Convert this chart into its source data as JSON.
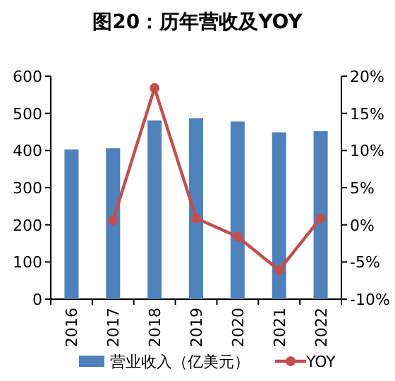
{
  "chart_data": {
    "type": "bar",
    "title": "图20：历年营收及YOY",
    "categories": [
      "2016",
      "2017",
      "2018",
      "2019",
      "2020",
      "2021",
      "2022"
    ],
    "series": [
      {
        "name": "营业收入（亿美元）",
        "color": "#4f81bd",
        "values": [
          403,
          406,
          481,
          487,
          478,
          449,
          452
        ]
      },
      {
        "name": "YOY",
        "type": "line",
        "axis": "y2",
        "color": "#c0504d",
        "marker": "circle",
        "values": [
          null,
          0.6,
          18.4,
          0.9,
          -1.6,
          -6.1,
          0.9
        ]
      }
    ],
    "ylim": [
      0,
      600
    ],
    "yticks": [
      0,
      100,
      200,
      300,
      400,
      500,
      600
    ],
    "y2lim": [
      -10,
      20
    ],
    "y2ticks": [
      {
        "value": -10,
        "label": "-10%"
      },
      {
        "value": -5,
        "label": "-5%"
      },
      {
        "value": 0,
        "label": "0%"
      },
      {
        "value": 5,
        "label": "5%"
      },
      {
        "value": 10,
        "label": "10%"
      },
      {
        "value": 15,
        "label": "15%"
      },
      {
        "value": 20,
        "label": "20%"
      }
    ],
    "legend": "bottom"
  }
}
